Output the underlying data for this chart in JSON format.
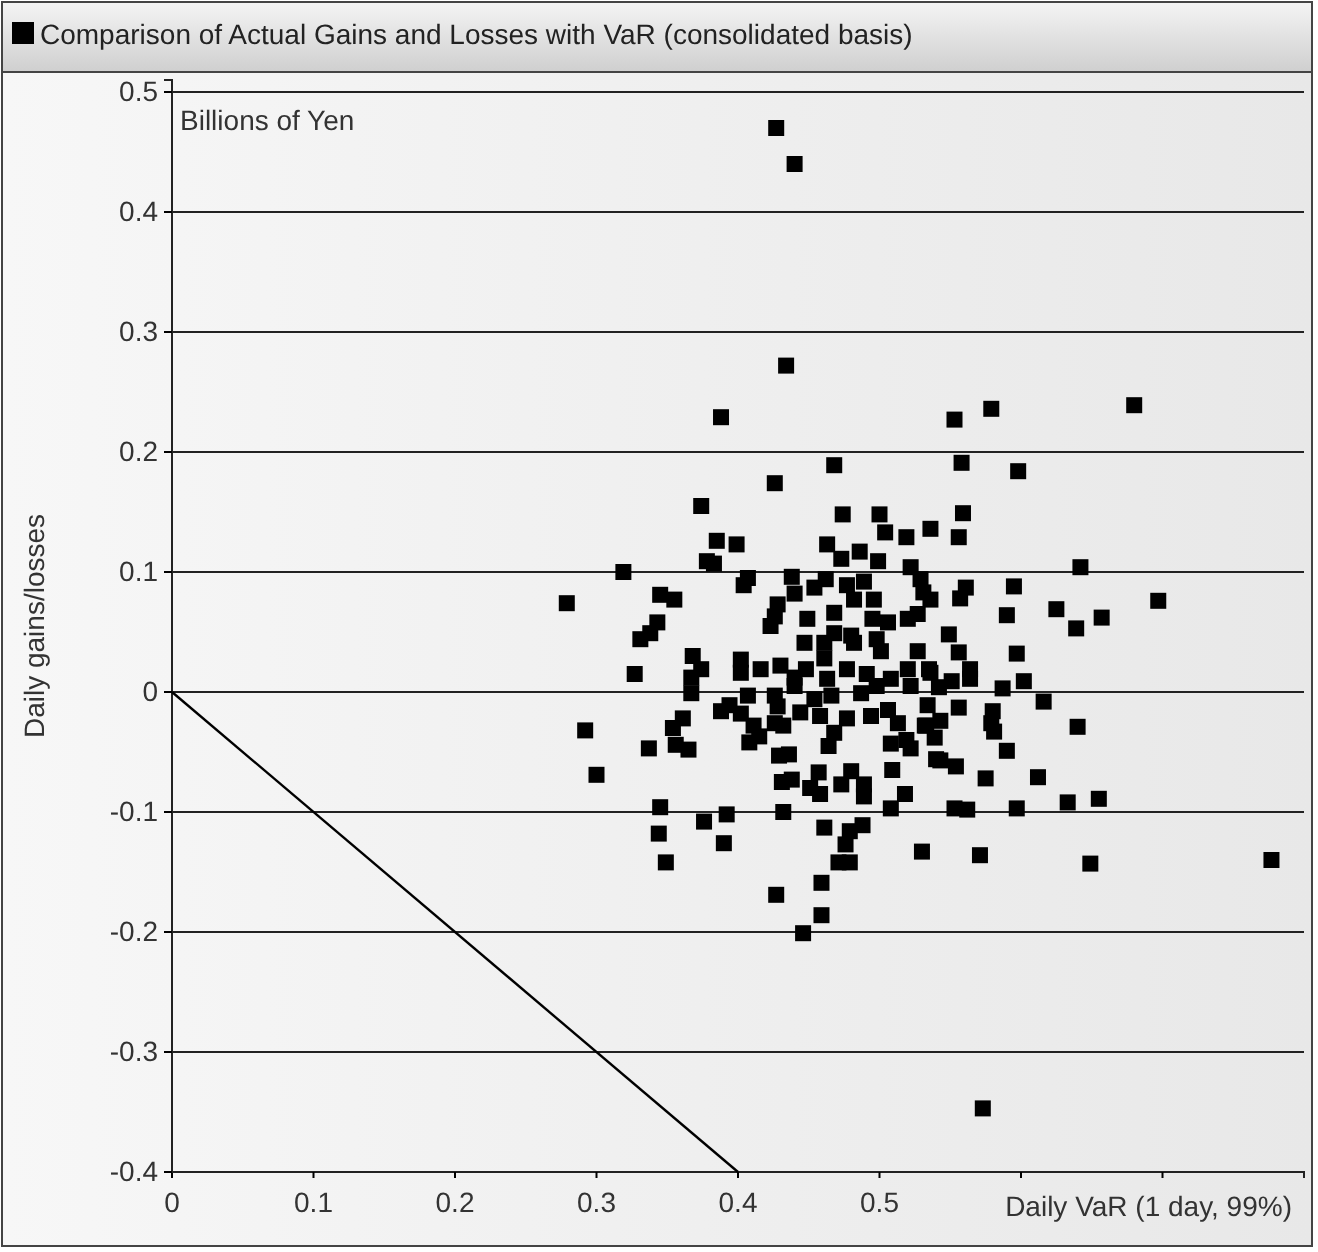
{
  "chart_data": {
    "type": "scatter",
    "title": "Comparison of Actual Gains and Losses with VaR (consolidated basis)",
    "xlabel": "Daily VaR (1 day, 99%)",
    "ylabel": "Daily gains/losses",
    "annotations": [
      "Billions of Yen"
    ],
    "xlim": [
      0,
      0.8
    ],
    "xticks": [
      0,
      0.1,
      0.2,
      0.3,
      0.4,
      0.5,
      {
        "value": 0.6,
        "label": null
      },
      {
        "value": 0.7,
        "label": null
      }
    ],
    "ylim": [
      -0.4,
      0.51
    ],
    "yticks": [
      -0.4,
      -0.3,
      -0.2,
      -0.1,
      0,
      0.1,
      0.2,
      0.3,
      0.4,
      0.5
    ],
    "grid": "y",
    "marker": "square",
    "series": [
      {
        "color": "#000000",
        "x": [
          0.427,
          0.44,
          0.434,
          0.388,
          0.553,
          0.579,
          0.68,
          0.468,
          0.426,
          0.374,
          0.474,
          0.5,
          0.504,
          0.519,
          0.536,
          0.385,
          0.399,
          0.463,
          0.486,
          0.378,
          0.383,
          0.473,
          0.499,
          0.319,
          0.522,
          0.407,
          0.438,
          0.462,
          0.477,
          0.489,
          0.529,
          0.404,
          0.279,
          0.345,
          0.355,
          0.428,
          0.44,
          0.454,
          0.482,
          0.496,
          0.531,
          0.536,
          0.426,
          0.449,
          0.468,
          0.495,
          0.506,
          0.52,
          0.527,
          0.343,
          0.338,
          0.331,
          0.423,
          0.468,
          0.48,
          0.498,
          0.447,
          0.461,
          0.482,
          0.501,
          0.527,
          0.368,
          0.402,
          0.461,
          0.327,
          0.374,
          0.367,
          0.402,
          0.416,
          0.43,
          0.44,
          0.448,
          0.463,
          0.477,
          0.491,
          0.508,
          0.52,
          0.536,
          0.558,
          0.598,
          0.559,
          0.556,
          0.642,
          0.561,
          0.595,
          0.557,
          0.697,
          0.625,
          0.59,
          0.657,
          0.639,
          0.549,
          0.556,
          0.597,
          0.535,
          0.564,
          0.564,
          0.551,
          0.542,
          0.587,
          0.602,
          0.292,
          0.3,
          0.337,
          0.354,
          0.361,
          0.356,
          0.365,
          0.367,
          0.388,
          0.394,
          0.402,
          0.407,
          0.411,
          0.415,
          0.408,
          0.426,
          0.428,
          0.426,
          0.432,
          0.444,
          0.44,
          0.454,
          0.458,
          0.466,
          0.468,
          0.464,
          0.477,
          0.487,
          0.494,
          0.498,
          0.506,
          0.513,
          0.522,
          0.534,
          0.532,
          0.519,
          0.522,
          0.508,
          0.54,
          0.429,
          0.436,
          0.431,
          0.438,
          0.457,
          0.451,
          0.458,
          0.473,
          0.48,
          0.489,
          0.489,
          0.509,
          0.518,
          0.508,
          0.345,
          0.344,
          0.349,
          0.376,
          0.392,
          0.39,
          0.432,
          0.461,
          0.479,
          0.488,
          0.476,
          0.471,
          0.479,
          0.53,
          0.459,
          0.427,
          0.459,
          0.446,
          0.573,
          0.556,
          0.543,
          0.533,
          0.539,
          0.58,
          0.579,
          0.581,
          0.616,
          0.64,
          0.59,
          0.543,
          0.554,
          0.575,
          0.612,
          0.633,
          0.655,
          0.553,
          0.562,
          0.597,
          0.571,
          0.649,
          0.777
        ],
        "values": [
          0.47,
          0.44,
          0.272,
          0.229,
          0.227,
          0.236,
          0.239,
          0.189,
          0.174,
          0.155,
          0.148,
          0.148,
          0.133,
          0.129,
          0.136,
          0.126,
          0.123,
          0.123,
          0.117,
          0.109,
          0.107,
          0.111,
          0.109,
          0.1,
          0.104,
          0.095,
          0.096,
          0.094,
          0.089,
          0.092,
          0.094,
          0.089,
          0.074,
          0.081,
          0.077,
          0.073,
          0.082,
          0.087,
          0.077,
          0.077,
          0.083,
          0.077,
          0.063,
          0.061,
          0.066,
          0.061,
          0.058,
          0.061,
          0.065,
          0.058,
          0.049,
          0.044,
          0.055,
          0.049,
          0.047,
          0.044,
          0.041,
          0.041,
          0.041,
          0.034,
          0.034,
          0.03,
          0.027,
          0.028,
          0.015,
          0.019,
          0.012,
          0.016,
          0.019,
          0.022,
          0.012,
          0.019,
          0.011,
          0.019,
          0.015,
          0.011,
          0.019,
          0.016,
          0.191,
          0.184,
          0.149,
          0.129,
          0.104,
          0.087,
          0.088,
          0.078,
          0.076,
          0.069,
          0.064,
          0.062,
          0.053,
          0.048,
          0.033,
          0.032,
          0.019,
          0.019,
          0.011,
          0.009,
          0.004,
          0.003,
          0.009,
          -0.032,
          -0.069,
          -0.047,
          -0.03,
          -0.022,
          -0.044,
          -0.048,
          -0.001,
          -0.016,
          -0.011,
          -0.018,
          -0.003,
          -0.028,
          -0.037,
          -0.042,
          -0.003,
          -0.012,
          -0.026,
          -0.028,
          -0.017,
          0.005,
          -0.006,
          -0.02,
          -0.003,
          -0.034,
          -0.045,
          -0.022,
          -0.001,
          -0.02,
          0.005,
          -0.015,
          -0.026,
          0.005,
          -0.011,
          -0.028,
          -0.04,
          -0.047,
          -0.043,
          -0.056,
          -0.053,
          -0.052,
          -0.075,
          -0.073,
          -0.067,
          -0.08,
          -0.085,
          -0.077,
          -0.066,
          -0.077,
          -0.087,
          -0.065,
          -0.085,
          -0.097,
          -0.096,
          -0.118,
          -0.142,
          -0.108,
          -0.102,
          -0.126,
          -0.1,
          -0.113,
          -0.116,
          -0.111,
          -0.127,
          -0.142,
          -0.142,
          -0.133,
          -0.159,
          -0.169,
          -0.186,
          -0.201,
          -0.347,
          -0.013,
          -0.024,
          -0.028,
          -0.038,
          -0.016,
          -0.026,
          -0.033,
          -0.008,
          -0.029,
          -0.049,
          -0.057,
          -0.062,
          -0.072,
          -0.071,
          -0.092,
          -0.089,
          -0.097,
          -0.098,
          -0.097,
          -0.136,
          -0.143,
          -0.14
        ]
      },
      {
        "type": "line",
        "color": "#000000",
        "marker": "none",
        "line_style": "solid",
        "x": [
          0,
          0.4
        ],
        "values": [
          0,
          -0.4
        ]
      }
    ]
  }
}
